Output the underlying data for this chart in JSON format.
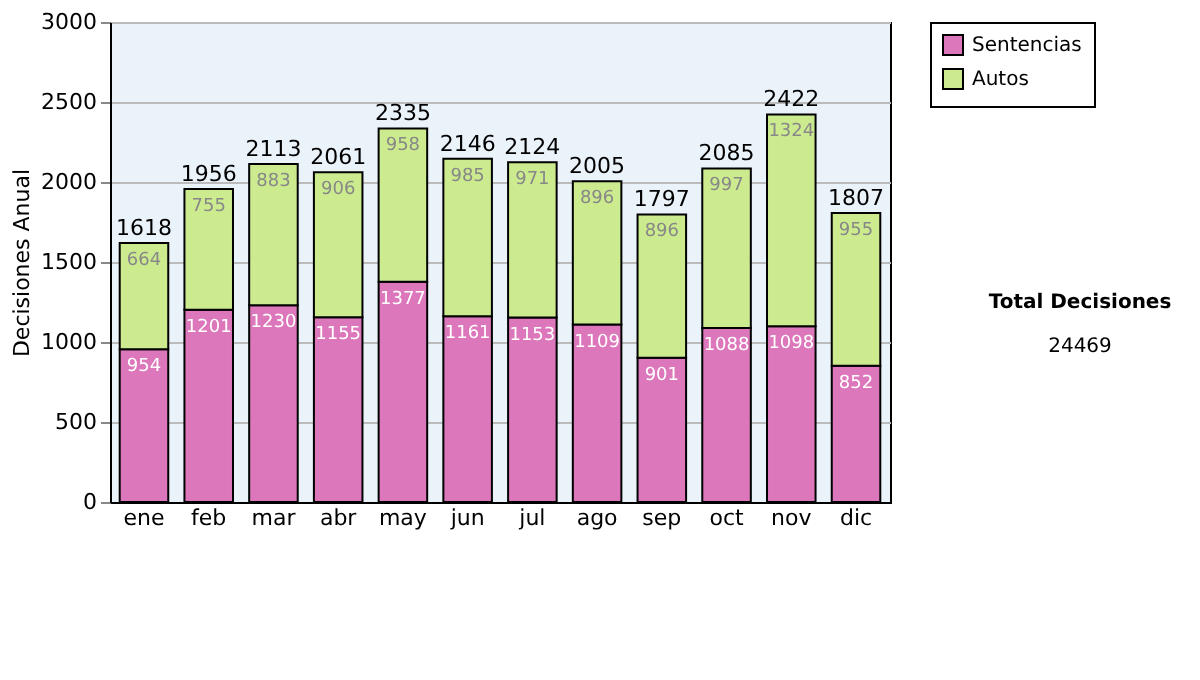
{
  "chart_data": {
    "type": "bar",
    "stacked": true,
    "ylabel": "Decisiones Anual",
    "categories": [
      "ene",
      "feb",
      "mar",
      "abr",
      "may",
      "jun",
      "jul",
      "ago",
      "sep",
      "oct",
      "nov",
      "dic"
    ],
    "series": [
      {
        "name": "Sentencias",
        "color": "#dd77bb",
        "values": [
          954,
          1201,
          1230,
          1155,
          1377,
          1161,
          1153,
          1109,
          901,
          1088,
          1098,
          852
        ]
      },
      {
        "name": "Autos",
        "color": "#cceb8f",
        "values": [
          664,
          755,
          883,
          906,
          958,
          985,
          971,
          896,
          896,
          997,
          1324,
          955
        ]
      }
    ],
    "totals": [
      "1618",
      "1956",
      "2113",
      "2061",
      "2335",
      "2146",
      "2124",
      "2005",
      "1797",
      "2085",
      "2422",
      "1807"
    ],
    "data_labels": true,
    "ylim": [
      0,
      3000
    ],
    "yticks": [
      0,
      500,
      1000,
      1500,
      2000,
      2500,
      3000
    ],
    "grid": "y",
    "legend": "right",
    "annotations": [
      "Total Decisiones",
      "24469"
    ]
  }
}
